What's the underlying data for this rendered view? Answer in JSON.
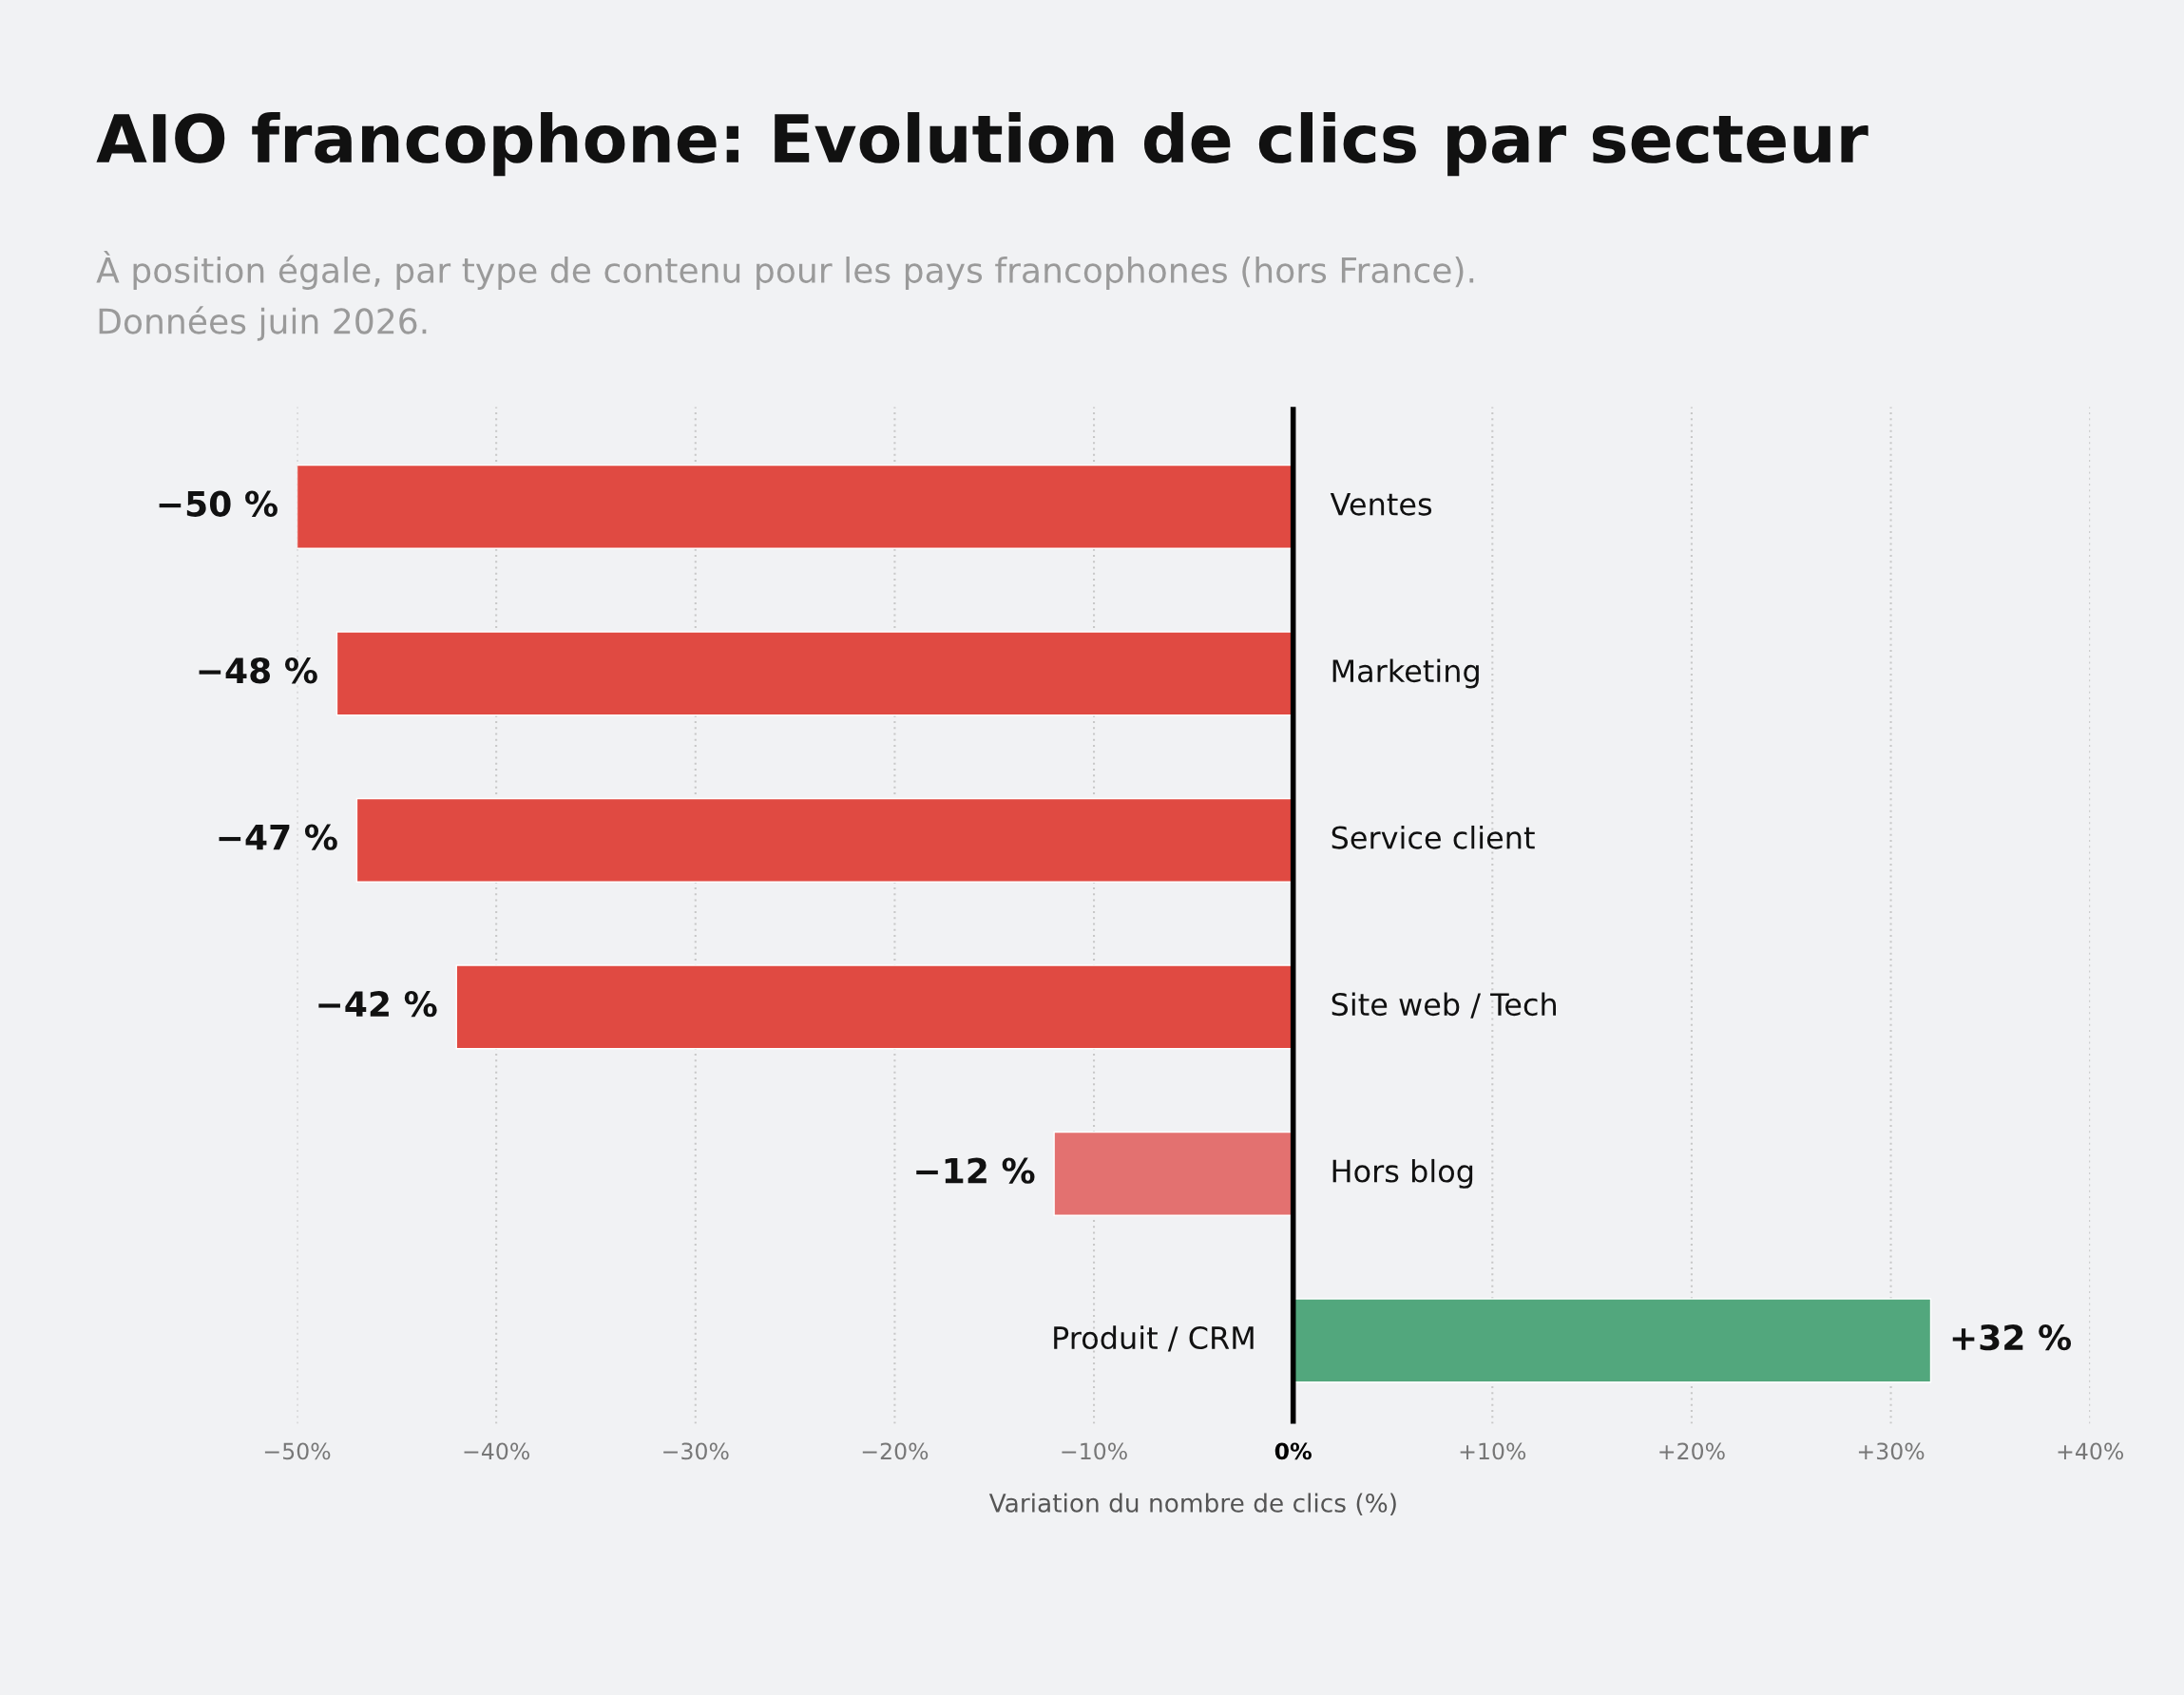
{
  "chart_data": {
    "type": "bar",
    "orientation": "horizontal",
    "title": "AIO francophone: Evolution de clics par secteur",
    "subtitle": "À position égale, par type de contenu pour les pays francophones (hors France).\nDonnées juin 2026.",
    "xlabel": "Variation du nombre de clics (%)",
    "categories": [
      "Ventes",
      "Marketing",
      "Service client",
      "Site web / Tech",
      "Hors blog",
      "Produit / CRM"
    ],
    "values": [
      -50,
      -48,
      -47,
      -42,
      -12,
      32
    ],
    "colors": [
      "#e04a42",
      "#e04a42",
      "#e04a42",
      "#e04a42",
      "#e37170",
      "#52a77d"
    ],
    "value_labels": [
      "−50 %",
      "−48 %",
      "−47 %",
      "−42 %",
      "−12 %",
      "+32 %"
    ],
    "xlim": [
      -50,
      40
    ],
    "xticks": [
      {
        "value": -50,
        "label": "−50%"
      },
      {
        "value": -40,
        "label": "−40%"
      },
      {
        "value": -30,
        "label": "−30%"
      },
      {
        "value": -20,
        "label": "−20%"
      },
      {
        "value": -10,
        "label": "−10%"
      },
      {
        "value": 0,
        "label": "0%"
      },
      {
        "value": 10,
        "label": "+10%"
      },
      {
        "value": 20,
        "label": "+20%"
      },
      {
        "value": 30,
        "label": "+30%"
      },
      {
        "value": 40,
        "label": "+40%"
      }
    ],
    "grid": "x"
  }
}
